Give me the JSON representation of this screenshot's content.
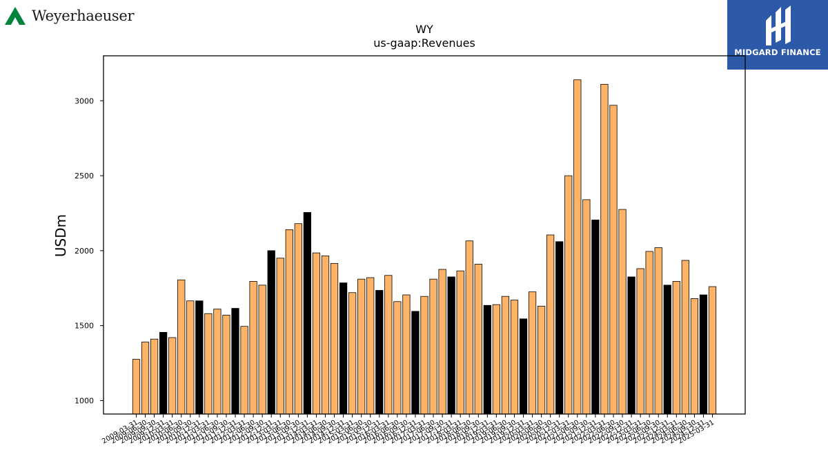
{
  "logos": {
    "left": {
      "name": "Weyerhaeuser",
      "color": "#00843d"
    },
    "right": {
      "name": "MIDGARD FINANCE",
      "background": "#2d5aa8"
    }
  },
  "chart_data": {
    "type": "bar",
    "title": "WY",
    "subtitle": "us-gaap:Revenues",
    "xlabel": "",
    "ylabel": "USDm",
    "ylim": [
      910,
      3300
    ],
    "yticks": [
      1000,
      1500,
      2000,
      2500,
      3000
    ],
    "grid": false,
    "colors": {
      "default": "#ffb366",
      "highlight": "#000000",
      "edge": "#000000"
    },
    "categories": [
      "2009-03-31",
      "2009-06-30",
      "2009-09-30",
      "2009-12-31",
      "2010-03-31",
      "2010-06-30",
      "2010-09-30",
      "2010-12-31",
      "2011-03-31",
      "2011-06-30",
      "2011-09-30",
      "2011-12-31",
      "2012-03-31",
      "2012-06-30",
      "2012-09-30",
      "2012-12-31",
      "2013-03-31",
      "2013-06-30",
      "2013-09-30",
      "2013-12-31",
      "2014-03-31",
      "2014-06-30",
      "2014-09-30",
      "2014-12-31",
      "2015-03-31",
      "2015-06-30",
      "2015-09-30",
      "2015-12-31",
      "2016-03-31",
      "2016-06-30",
      "2016-09-30",
      "2016-12-31",
      "2017-03-31",
      "2017-06-30",
      "2017-09-30",
      "2017-12-31",
      "2018-03-31",
      "2018-06-30",
      "2018-09-30",
      "2018-12-31",
      "2019-03-31",
      "2019-06-30",
      "2019-09-30",
      "2019-12-31",
      "2020-03-31",
      "2020-06-30",
      "2020-09-30",
      "2020-12-31",
      "2021-03-31",
      "2021-06-30",
      "2021-09-30",
      "2021-12-31",
      "2022-03-31",
      "2022-06-30",
      "2022-09-30",
      "2022-12-31",
      "2023-03-31",
      "2023-06-30",
      "2023-09-30",
      "2023-12-31",
      "2024-03-31",
      "2024-06-30",
      "2024-09-30",
      "2024-12-31",
      "2025-03-31"
    ],
    "values": [
      1275,
      1390,
      1410,
      1455,
      1420,
      1805,
      1665,
      1665,
      1580,
      1610,
      1570,
      1615,
      1495,
      1795,
      1770,
      2000,
      1950,
      2140,
      2180,
      2255,
      1985,
      1965,
      1915,
      1785,
      1720,
      1810,
      1820,
      1735,
      1835,
      1660,
      1705,
      1595,
      1695,
      1810,
      1875,
      1825,
      1865,
      2065,
      1910,
      1635,
      1640,
      1695,
      1670,
      1545,
      1725,
      1630,
      2105,
      2060,
      2500,
      3140,
      2340,
      2205,
      3110,
      2970,
      2275,
      1825,
      1880,
      1995,
      2020,
      1770,
      1795,
      1935,
      1680,
      1705,
      1760
    ],
    "highlight": [
      3,
      7,
      11,
      15,
      19,
      23,
      27,
      31,
      35,
      39,
      43,
      47,
      51,
      55,
      59,
      63
    ]
  }
}
